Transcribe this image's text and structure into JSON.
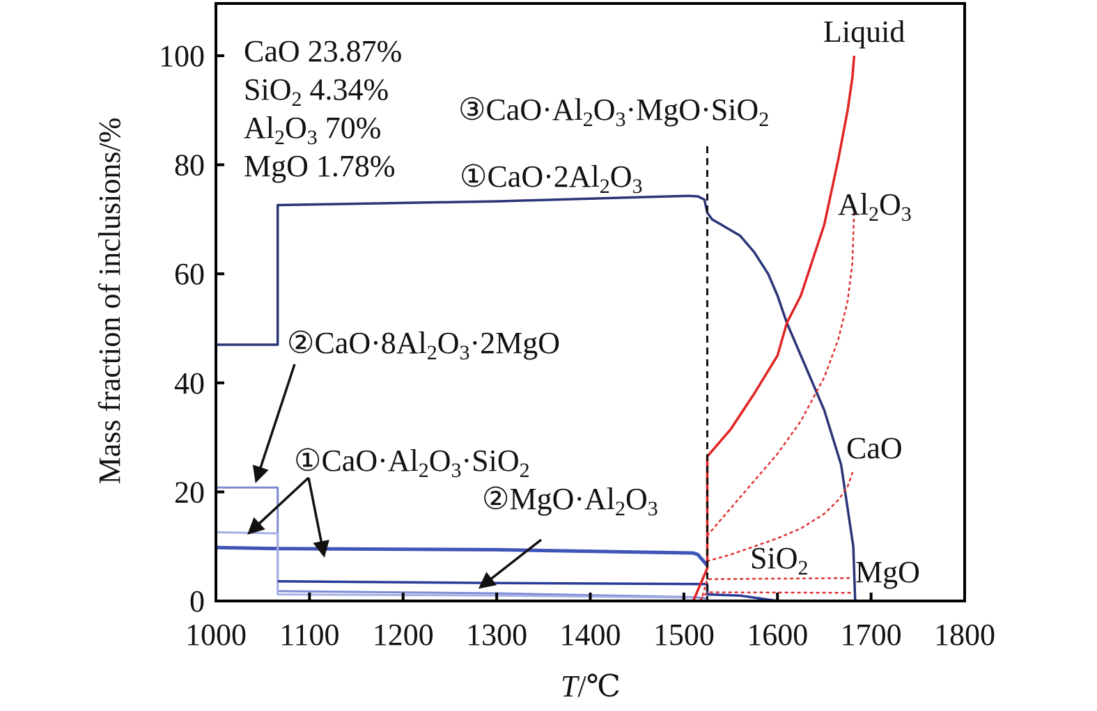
{
  "chart_data": {
    "type": "line",
    "title": "",
    "xlabel_italic": "T",
    "xlabel_rest": "/℃",
    "ylabel": "Mass fraction of inclusions/%",
    "xlim": [
      1000,
      1800
    ],
    "ylim": [
      0,
      110
    ],
    "x_ticks": [
      1000,
      1100,
      1200,
      1300,
      1400,
      1500,
      1600,
      1700,
      1800
    ],
    "y_ticks": [
      0,
      20,
      40,
      60,
      80,
      100
    ],
    "x_tick_labels": [
      "1000",
      "1100",
      "1200",
      "1300",
      "1400",
      "1500",
      "1600",
      "1700",
      "1800"
    ],
    "y_tick_labels": [
      "0",
      "20",
      "40",
      "60",
      "80",
      "100"
    ],
    "grid": false,
    "composition": [
      [
        {
          "t": "CaO 23.87%"
        }
      ],
      [
        {
          "t": "SiO"
        },
        {
          "t": "2",
          "sub": true
        },
        {
          "t": " 4.34%"
        }
      ],
      [
        {
          "t": "Al"
        },
        {
          "t": "2",
          "sub": true
        },
        {
          "t": "O"
        },
        {
          "t": "3",
          "sub": true
        },
        {
          "t": " 70%"
        }
      ],
      [
        {
          "t": "MgO 1.78%"
        }
      ]
    ],
    "labels": {
      "liquid": [
        {
          "t": "Liquid"
        }
      ],
      "liq_al2o3": [
        {
          "t": "Al"
        },
        {
          "t": "2",
          "sub": true
        },
        {
          "t": "O"
        },
        {
          "t": "3",
          "sub": true
        }
      ],
      "liq_cao": [
        {
          "t": "CaO"
        }
      ],
      "liq_sio2": [
        {
          "t": "SiO"
        },
        {
          "t": "2",
          "sub": true
        }
      ],
      "liq_mgo": [
        {
          "t": "MgO"
        }
      ],
      "c3": [
        {
          "t": "③CaO·Al"
        },
        {
          "t": "2",
          "sub": true
        },
        {
          "t": "O"
        },
        {
          "t": "3",
          "sub": true
        },
        {
          "t": "·MgO·SiO"
        },
        {
          "t": "2",
          "sub": true
        }
      ],
      "ca2": [
        {
          "t": "①CaO·2Al"
        },
        {
          "t": "2",
          "sub": true
        },
        {
          "t": "O"
        },
        {
          "t": "3",
          "sub": true
        }
      ],
      "c8a2m": [
        {
          "t": "②CaO·8Al"
        },
        {
          "t": "2",
          "sub": true
        },
        {
          "t": "O"
        },
        {
          "t": "3",
          "sub": true
        },
        {
          "t": "·2MgO"
        }
      ],
      "cas": [
        {
          "t": "①CaO·Al"
        },
        {
          "t": "2",
          "sub": true
        },
        {
          "t": "O"
        },
        {
          "t": "3",
          "sub": true
        },
        {
          "t": "·SiO"
        },
        {
          "t": "2",
          "sub": true
        }
      ],
      "ma": [
        {
          "t": "②MgO·Al"
        },
        {
          "t": "2",
          "sub": true
        },
        {
          "t": "O"
        },
        {
          "t": "3",
          "sub": true
        }
      ]
    },
    "vline_x": 1525,
    "series": [
      {
        "id": "ca2",
        "color": "#2a3578",
        "width": 3.5,
        "dash": "",
        "points": [
          [
            1000,
            47
          ],
          [
            1066,
            47
          ],
          [
            1066,
            72.6
          ],
          [
            1300,
            73.3
          ],
          [
            1505,
            74.3
          ],
          [
            1515,
            74.2
          ],
          [
            1522,
            73.6
          ],
          [
            1525,
            71.2
          ],
          [
            1530,
            70
          ],
          [
            1545,
            68.5
          ],
          [
            1560,
            67
          ],
          [
            1575,
            64
          ],
          [
            1590,
            60
          ],
          [
            1600,
            56
          ],
          [
            1610,
            51
          ],
          [
            1630,
            43
          ],
          [
            1650,
            35
          ],
          [
            1668,
            25
          ],
          [
            1681,
            10
          ],
          [
            1683,
            0
          ]
        ]
      },
      {
        "id": "c8a2m",
        "color": "#7e8cd2",
        "width": 3,
        "dash": "",
        "points": [
          [
            1000,
            20.8
          ],
          [
            1066,
            20.8
          ],
          [
            1066,
            1.8
          ],
          [
            1300,
            1.4
          ],
          [
            1510,
            0.7
          ],
          [
            1525,
            0.5
          ]
        ]
      },
      {
        "id": "cas",
        "color": "#3f55b8",
        "width": 5,
        "dash": "",
        "points": [
          [
            1000,
            9.8
          ],
          [
            1066,
            9.6
          ],
          [
            1300,
            9.4
          ],
          [
            1510,
            8.8
          ],
          [
            1515,
            8.5
          ],
          [
            1525,
            6.5
          ]
        ]
      },
      {
        "id": "ma_low",
        "color": "#a6b0e4",
        "width": 3,
        "dash": "",
        "points": [
          [
            1000,
            12.6
          ],
          [
            1066,
            12.4
          ],
          [
            1066,
            1.2
          ],
          [
            1300,
            1
          ],
          [
            1510,
            0.6
          ]
        ]
      },
      {
        "id": "ma",
        "color": "#2a3b96",
        "width": 3.5,
        "dash": "",
        "points": [
          [
            1066,
            3.6
          ],
          [
            1300,
            3.3
          ],
          [
            1525,
            3.1
          ],
          [
            1525,
            1.2
          ],
          [
            1560,
            1
          ],
          [
            1600,
            0
          ]
        ]
      },
      {
        "id": "liquid",
        "color": "#e02424",
        "width": 3.5,
        "dash": "",
        "points": [
          [
            1000,
            0
          ],
          [
            1510,
            0
          ],
          [
            1525,
            6
          ],
          [
            1525,
            26.5
          ],
          [
            1550,
            31.5
          ],
          [
            1575,
            38
          ],
          [
            1600,
            45
          ],
          [
            1610,
            51
          ],
          [
            1625,
            56
          ],
          [
            1650,
            69
          ],
          [
            1665,
            81
          ],
          [
            1675,
            90
          ],
          [
            1680,
            96
          ],
          [
            1682,
            100
          ]
        ]
      },
      {
        "id": "al2o3",
        "color": "#e03030",
        "width": 2.5,
        "dash": "3,6",
        "points": [
          [
            1525,
            12
          ],
          [
            1550,
            17
          ],
          [
            1575,
            22
          ],
          [
            1600,
            27
          ],
          [
            1625,
            33
          ],
          [
            1650,
            41
          ],
          [
            1665,
            48
          ],
          [
            1675,
            55
          ],
          [
            1680,
            62
          ],
          [
            1682,
            72
          ]
        ]
      },
      {
        "id": "cao",
        "color": "#e03030",
        "width": 2.5,
        "dash": "3,6",
        "points": [
          [
            1525,
            7.3
          ],
          [
            1550,
            8.5
          ],
          [
            1575,
            10
          ],
          [
            1600,
            11.5
          ],
          [
            1625,
            13.3
          ],
          [
            1650,
            16
          ],
          [
            1665,
            18.5
          ],
          [
            1675,
            21
          ],
          [
            1680,
            23.5
          ]
        ]
      },
      {
        "id": "sio2",
        "color": "#e03030",
        "width": 2.5,
        "dash": "3,6",
        "points": [
          [
            1520,
            1
          ],
          [
            1525,
            4
          ],
          [
            1680,
            4.2
          ]
        ]
      },
      {
        "id": "mgo",
        "color": "#e03030",
        "width": 2.5,
        "dash": "3,6",
        "points": [
          [
            1518,
            0.3
          ],
          [
            1525,
            1.6
          ],
          [
            1680,
            1.5
          ]
        ]
      }
    ]
  }
}
